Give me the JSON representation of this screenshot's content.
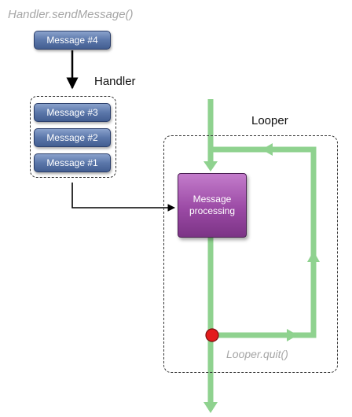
{
  "labels": {
    "api": "Handler.sendMessage()",
    "handler": "Handler",
    "looper": "Looper",
    "quit": "Looper.quit()"
  },
  "incoming_message": "Message #4",
  "queue": {
    "messages": [
      "Message #3",
      "Message #2",
      "Message #1"
    ]
  },
  "processing": {
    "label": "Message processing"
  },
  "colors": {
    "flow_green": "#8fd28f",
    "message_blue": "#5b77aa",
    "processing_purple": "#9b4aa5",
    "quit_red": "#e31c1c"
  }
}
